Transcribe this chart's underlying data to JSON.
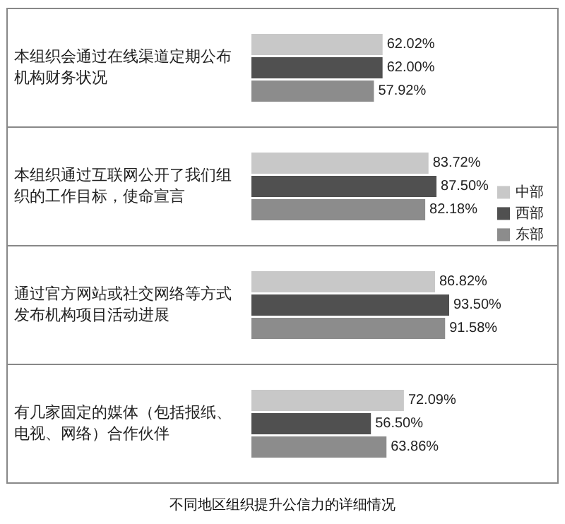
{
  "chart_data": {
    "type": "bar",
    "orientation": "horizontal",
    "title": "不同地区组织提升公信力的详细情况",
    "legend": "right",
    "categories": [
      "本组织会通过在线渠道定期公布机构财务状况",
      "本组织通过互联网公开了我们组织的工作目标，使命宣言",
      "通过官方网站或社交网络等方式发布机构项目活动进展",
      "有几家固定的媒体（包括报纸、电视、网络）合作伙伴"
    ],
    "series": [
      {
        "name": "中部",
        "color": "#c8c8c8",
        "values": [
          62.02,
          83.72,
          86.82,
          72.09
        ],
        "value_labels": [
          "62.02%",
          "83.72%",
          "86.82%",
          "72.09%"
        ]
      },
      {
        "name": "西部",
        "color": "#505050",
        "values": [
          62.0,
          87.5,
          93.5,
          56.5
        ],
        "value_labels": [
          "62.00%",
          "87.50%",
          "93.50%",
          "56.50%"
        ]
      },
      {
        "name": "东部",
        "color": "#8c8c8c",
        "values": [
          57.92,
          82.18,
          91.58,
          63.86
        ],
        "value_labels": [
          "57.92%",
          "82.18%",
          "91.58%",
          "63.86%"
        ]
      }
    ]
  }
}
